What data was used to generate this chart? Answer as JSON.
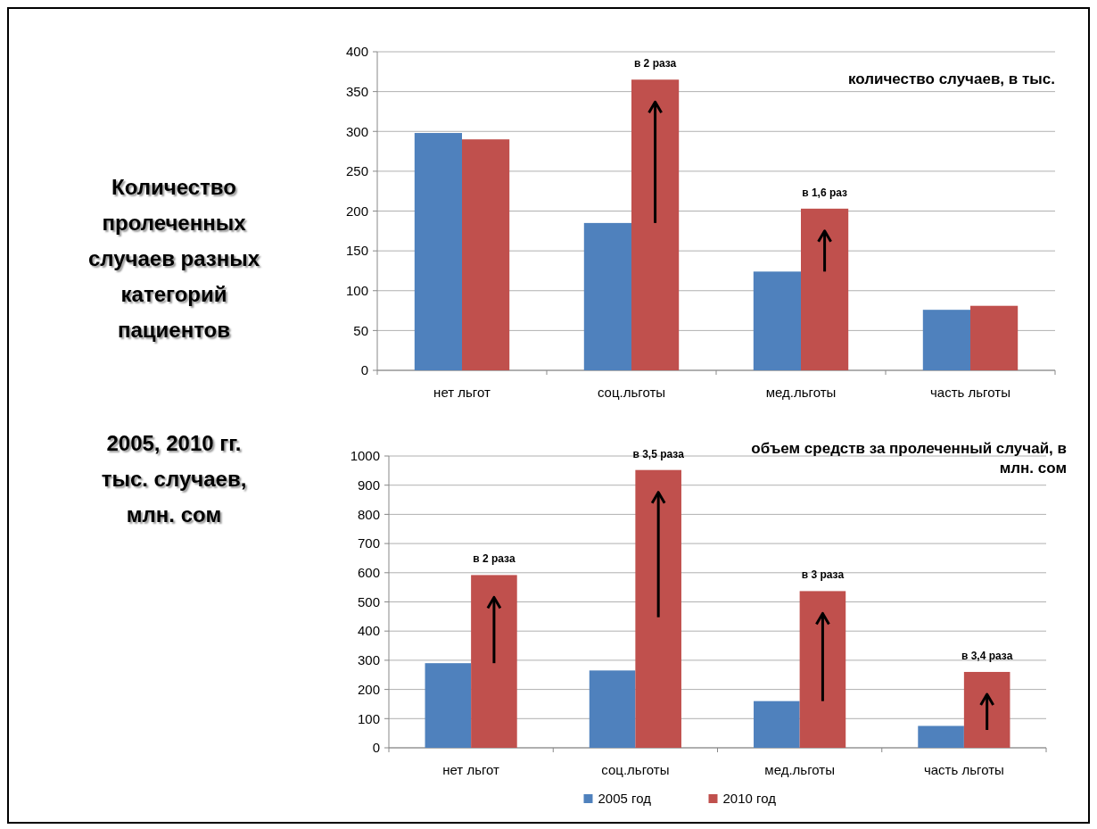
{
  "chart_data": [
    {
      "type": "other",
      "title": "Количество пролеченных случаев разных категорий пациентов",
      "subtitle": "2005, 2010 гг. тыс. случаев, млн. сом"
    },
    {
      "type": "bar",
      "title": "количество случаев, в тыс.",
      "categories": [
        "нет льгот",
        "соц.льготы",
        "мед.льготы",
        "часть льготы"
      ],
      "series": [
        {
          "color": "#4f81bd",
          "values": [
            298,
            185,
            124,
            76
          ]
        },
        {
          "color": "#c0504d",
          "values": [
            290,
            365,
            203,
            81
          ]
        }
      ],
      "ylim": [
        0,
        400
      ],
      "yticks": [
        0,
        50,
        100,
        150,
        200,
        250,
        300,
        350,
        400
      ],
      "grid": "y",
      "legend": false,
      "annotations": [
        {
          "text": "в  2 раза",
          "x": "соц.льготы",
          "y": 365
        },
        {
          "text": "в  1,6 раз",
          "x": "мед.льготы",
          "y": 203
        }
      ]
    },
    {
      "type": "bar",
      "title": "объем средств за пролеченный случай, в млн. сом",
      "categories": [
        "нет льгот",
        "соц.льготы",
        "мед.льготы",
        "часть льготы"
      ],
      "series": [
        {
          "name": "2005 год",
          "color": "#4f81bd",
          "values": [
            290,
            265,
            160,
            75
          ]
        },
        {
          "name": "2010 год",
          "color": "#c0504d",
          "values": [
            592,
            952,
            537,
            260
          ]
        }
      ],
      "ylim": [
        0,
        1000
      ],
      "yticks": [
        0,
        100,
        200,
        300,
        400,
        500,
        600,
        700,
        800,
        900,
        1000
      ],
      "grid": "y",
      "legend": "bottom",
      "annotations": [
        {
          "text": "в  2 раза",
          "x": "нет льгот",
          "y": 592
        },
        {
          "text": "в  3,5 раза",
          "x": "соц.льготы",
          "y": 952
        },
        {
          "text": "в  3 раза",
          "x": "мед.льготы",
          "y": 537
        },
        {
          "text": "в  3,4 раза",
          "x": "часть льготы",
          "y": 260
        }
      ]
    }
  ]
}
